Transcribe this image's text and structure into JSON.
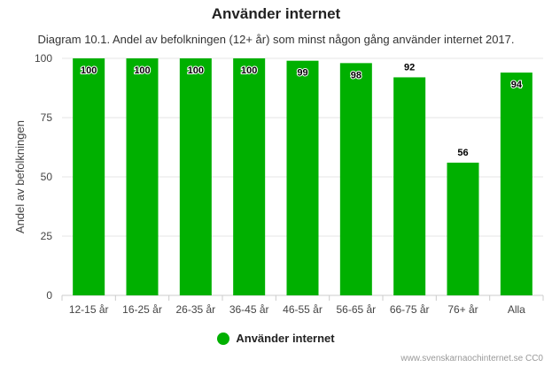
{
  "chart_data": {
    "type": "bar",
    "title": "Använder internet",
    "subtitle": "Diagram 10.1. Andel av befolkningen (12+ år) som minst någon gång använder internet 2017.",
    "ylabel": "Andel av befolkningen",
    "xlabel": "",
    "ylim": [
      0,
      100
    ],
    "yticks": [
      0,
      25,
      50,
      75,
      100
    ],
    "categories": [
      "12-15 år",
      "16-25 år",
      "26-35 år",
      "36-45 år",
      "46-55 år",
      "56-65 år",
      "66-75 år",
      "76+ år",
      "Alla"
    ],
    "series": [
      {
        "name": "Använder internet",
        "color": "#00b000",
        "values": [
          100,
          100,
          100,
          100,
          99,
          98,
          92,
          56,
          94
        ]
      }
    ],
    "legend_position": "bottom-center",
    "grid": true
  },
  "credit": "www.svenskarnaochinternet.se CC0"
}
